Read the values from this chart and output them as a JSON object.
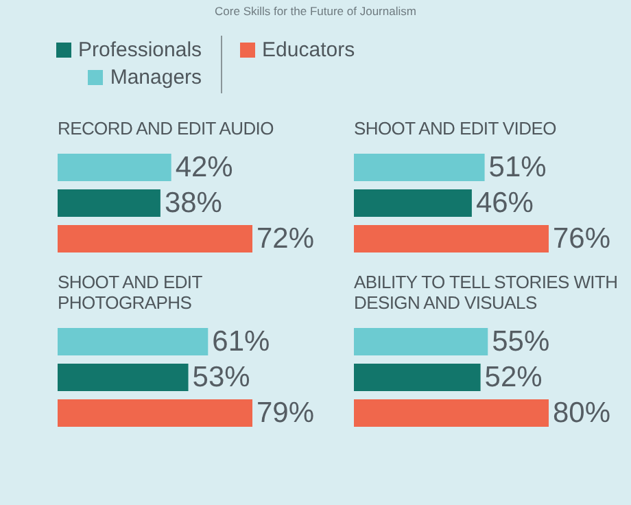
{
  "chart_data": [
    {
      "type": "bar",
      "orientation": "horizontal",
      "title": "Core Skills for the Future of Journalism",
      "subtitle": "RECORD AND EDIT AUDIO",
      "legend": "top",
      "categories": [
        null
      ],
      "series": [
        {
          "name": "Managers",
          "color": "#6ccbd1",
          "values": [
            42
          ],
          "value_labels": [
            "42%"
          ]
        },
        {
          "name": "Professionals",
          "color": "#12766b",
          "values": [
            38
          ],
          "value_labels": [
            "38%"
          ]
        },
        {
          "name": "Educators",
          "color": "#f0674c",
          "values": [
            72
          ],
          "value_labels": [
            "72%"
          ]
        }
      ]
    },
    {
      "type": "bar",
      "orientation": "horizontal",
      "title": "SHOOT AND EDIT VIDEO",
      "categories": [
        null
      ],
      "series": [
        {
          "color": "#6ccbd1",
          "values": [
            51
          ],
          "value_labels": [
            "51%"
          ]
        },
        {
          "color": "#12766b",
          "values": [
            46
          ],
          "value_labels": [
            "46%"
          ]
        },
        {
          "color": "#f0674c",
          "values": [
            76
          ],
          "value_labels": [
            "76%"
          ]
        }
      ]
    },
    {
      "type": "bar",
      "orientation": "horizontal",
      "title": "SHOOT AND EDIT PHOTOGRAPHS",
      "categories": [
        null
      ],
      "series": [
        {
          "color": "#6ccbd1",
          "values": [
            61
          ],
          "value_labels": [
            "61%"
          ]
        },
        {
          "color": "#12766b",
          "values": [
            53
          ],
          "value_labels": [
            "53%"
          ]
        },
        {
          "color": "#f0674c",
          "values": [
            79
          ],
          "value_labels": [
            "79%"
          ]
        }
      ]
    },
    {
      "type": "bar",
      "orientation": "horizontal",
      "title": "ABILITY TO TELL STORIES WITH DESIGN AND VISUALS",
      "categories": [
        null
      ],
      "series": [
        {
          "color": "#6ccbd1",
          "values": [
            55
          ],
          "value_labels": [
            "55%"
          ]
        },
        {
          "color": "#12766b",
          "values": [
            52
          ],
          "value_labels": [
            "52%"
          ]
        },
        {
          "color": "#f0674c",
          "values": [
            80
          ],
          "value_labels": [
            "80%"
          ]
        }
      ]
    }
  ]
}
